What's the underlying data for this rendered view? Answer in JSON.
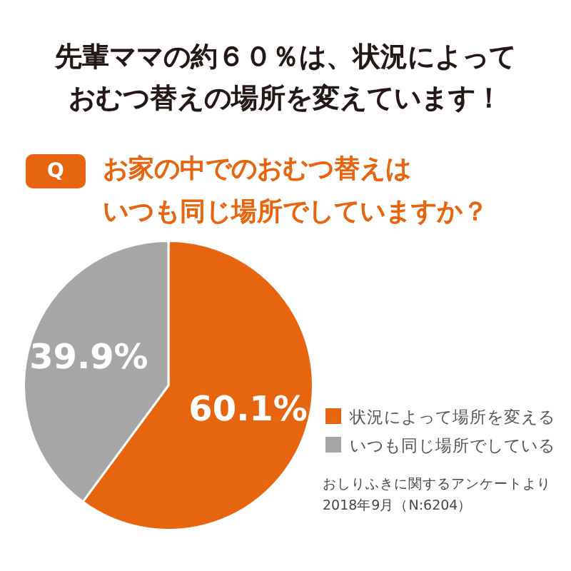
{
  "chart_data": {
    "type": "pie",
    "title": "先輩ママの約６０％は、状況によっておむつ替えの場所を変えています！",
    "subtitle": "お家の中でのおむつ替えはいつも同じ場所でしていますか？",
    "categories": [
      "状況によって場所を変える",
      "いつも同じ場所でしている"
    ],
    "values": [
      60.1,
      39.9
    ],
    "colors": [
      "#e8650f",
      "#a6a6a6"
    ],
    "value_labels": [
      "60.1%",
      "39.9%"
    ],
    "legend": "right",
    "annotations": [
      "Q",
      "おしりふきに関するアンケートより\n2018年9月（N:6204）"
    ]
  }
}
